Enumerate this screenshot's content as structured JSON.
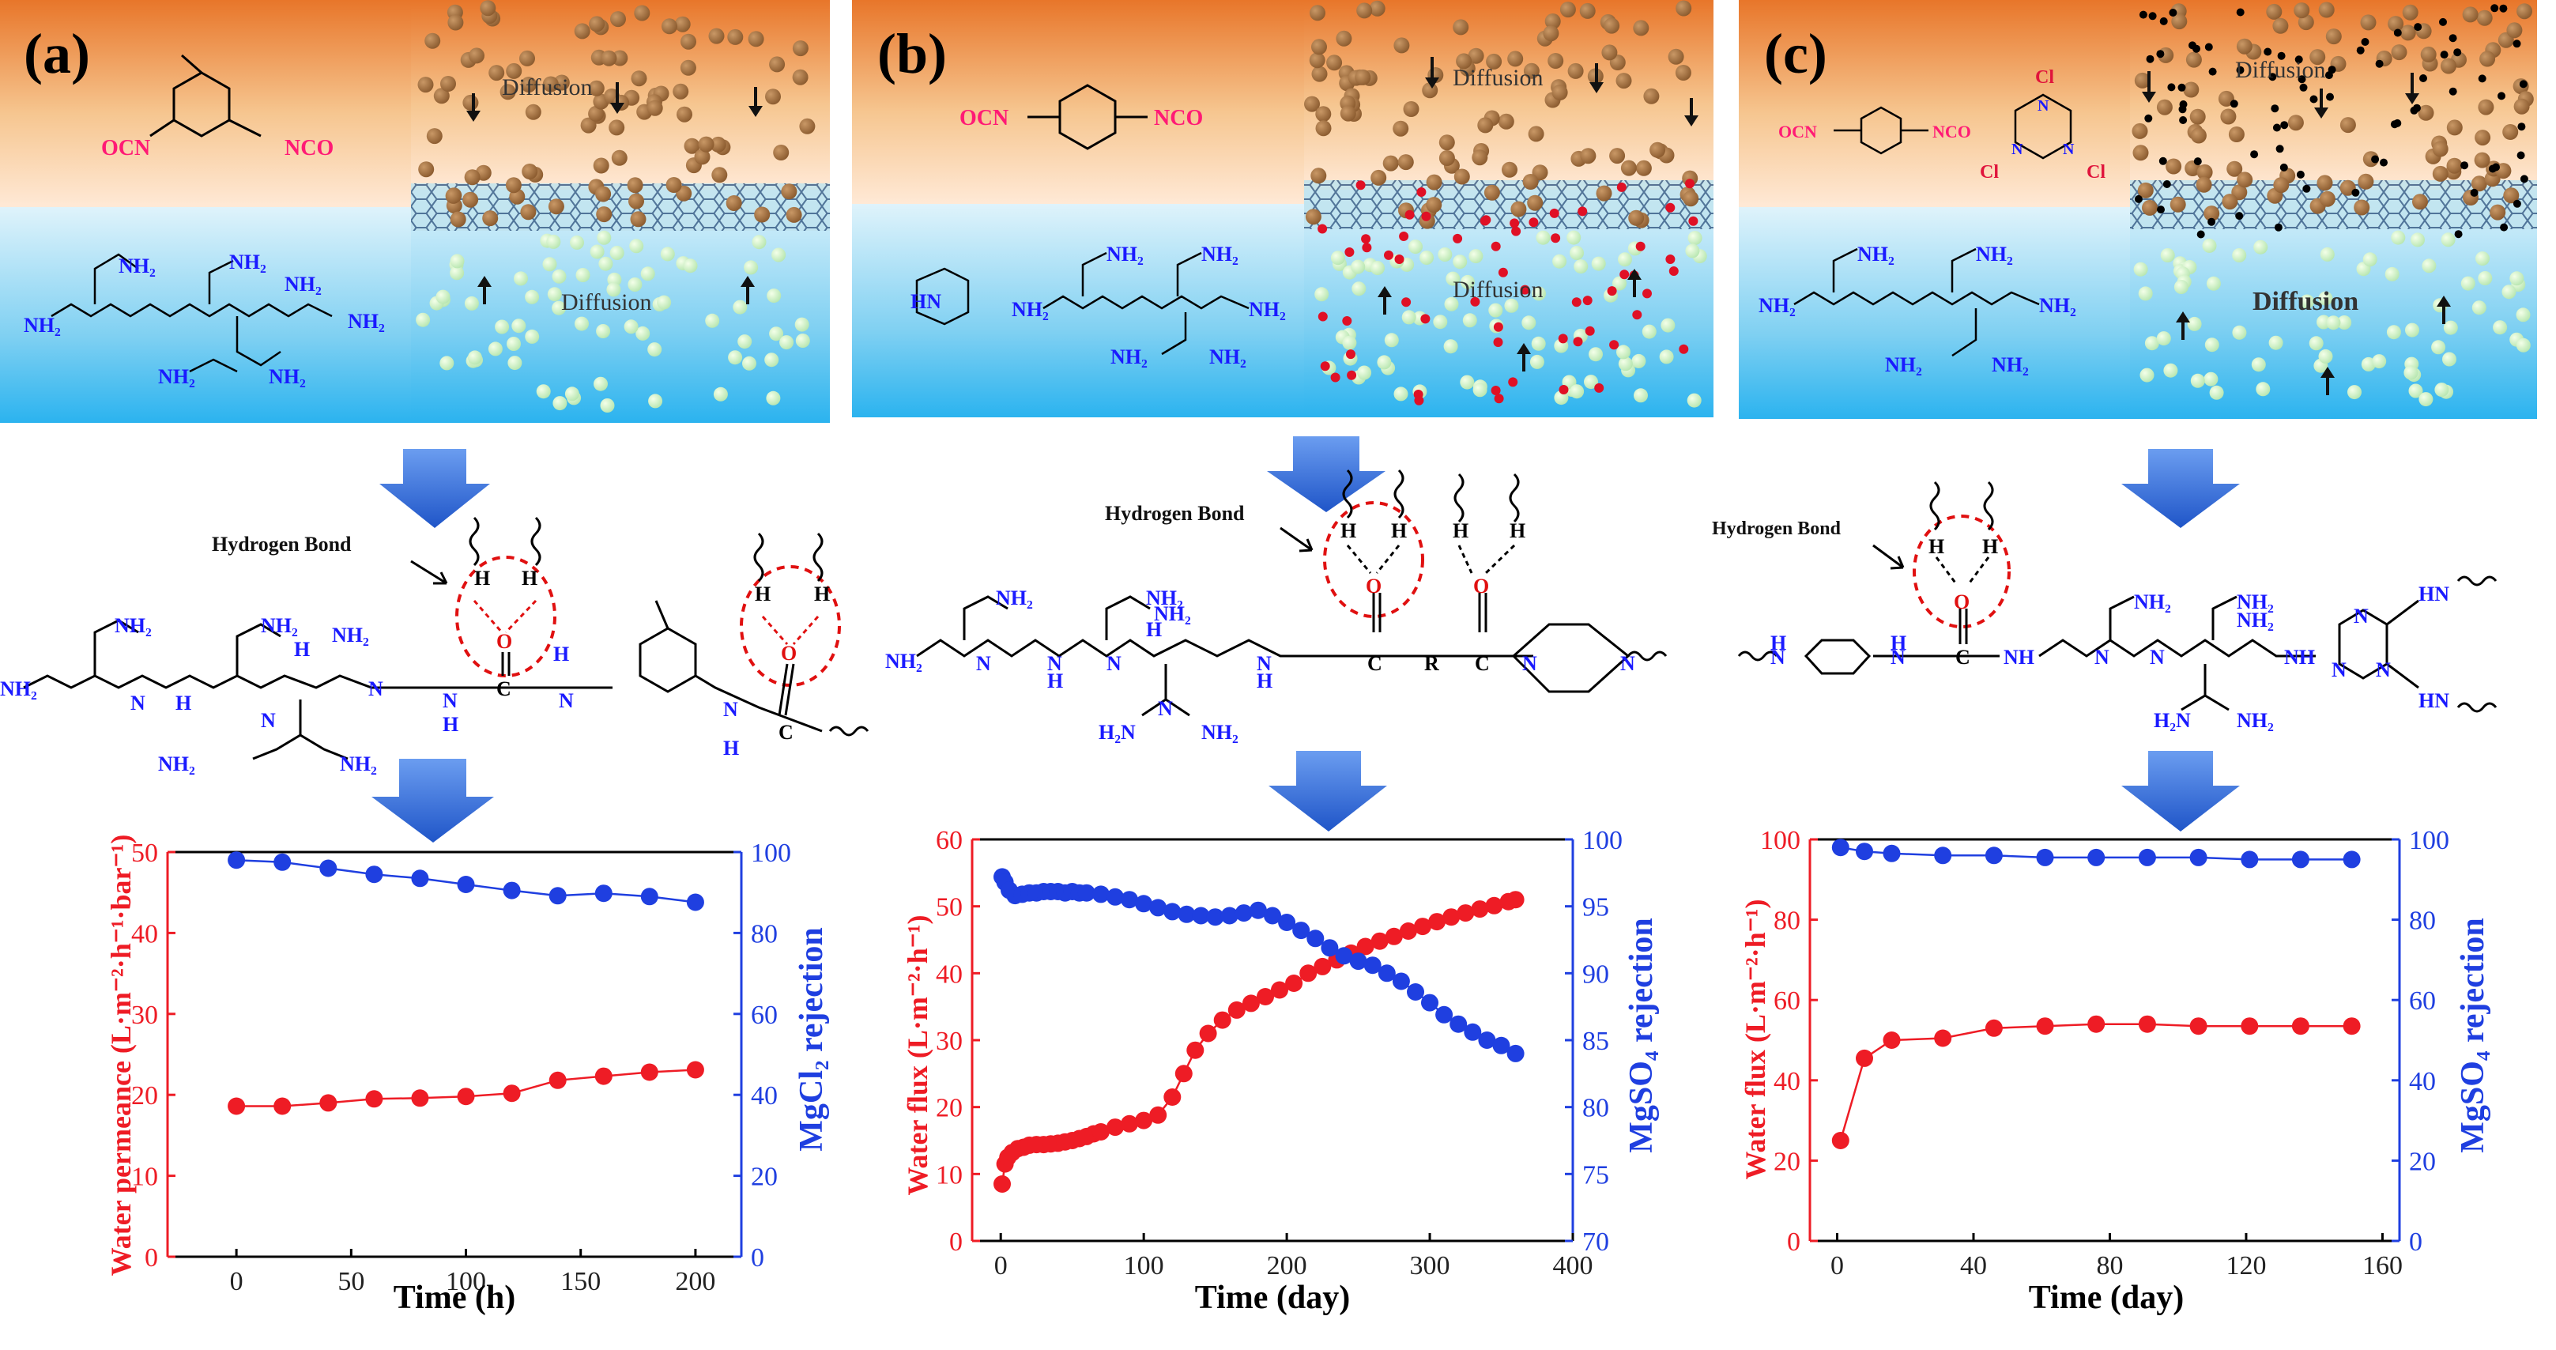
{
  "colors": {
    "red": "#ee1c25",
    "blue": "#1f3fe0",
    "tealBlue": "#4a7cff"
  },
  "panels": [
    {
      "label": "(a)",
      "monomer_labels": [
        "OCN",
        "NCO"
      ],
      "diffusion_top": "Diffusion",
      "diffusion_bottom": "Diffusion",
      "hydrogen_bond": "Hydrogen Bond"
    },
    {
      "label": "(b)",
      "monomer_labels": [
        "OCN",
        "NCO"
      ],
      "diffusion_top": "Diffusion",
      "diffusion_bottom": "Diffusion",
      "hydrogen_bond": "Hydrogen Bond"
    },
    {
      "label": "(c)",
      "monomer_labels": [
        "OCN",
        "NCO"
      ],
      "diffusion_top": "Diffusion",
      "diffusion_bottom": "Diffusion",
      "hydrogen_bond": "Hydrogen Bond"
    }
  ],
  "chart_data": [
    {
      "type": "line",
      "panel": "a",
      "xlabel": "Time (h)",
      "ylabel_left": "Water permeance (L·m⁻²·h⁻¹·bar⁻¹)",
      "ylabel_right": "MgCl₂ rejection",
      "xlim": [
        -30,
        220
      ],
      "xticks": [
        0,
        50,
        100,
        150,
        200
      ],
      "ylim_left": [
        0,
        50
      ],
      "yticks_left": [
        0,
        10,
        20,
        30,
        40,
        50
      ],
      "ylim_right": [
        0,
        100
      ],
      "yticks_right": [
        0,
        20,
        40,
        60,
        80,
        100
      ],
      "series": [
        {
          "name": "Water permeance",
          "axis": "left",
          "color": "#ee1c25",
          "x": [
            0,
            20,
            40,
            60,
            80,
            100,
            120,
            140,
            160,
            180,
            200
          ],
          "values": [
            18.6,
            18.6,
            19.0,
            19.5,
            19.6,
            19.8,
            20.2,
            21.8,
            22.3,
            22.8,
            23.1
          ]
        },
        {
          "name": "MgCl2 rejection",
          "axis": "right",
          "color": "#1f3fe0",
          "x": [
            0,
            20,
            40,
            60,
            80,
            100,
            120,
            140,
            160,
            180,
            200
          ],
          "values": [
            98,
            97.5,
            96,
            94.5,
            93.5,
            92,
            90.5,
            89.2,
            89.8,
            89,
            87.6
          ]
        }
      ]
    },
    {
      "type": "line",
      "panel": "b",
      "xlabel": "Time (day)",
      "ylabel_left": "Water flux (L·m⁻²·h⁻¹)",
      "ylabel_right": "MgSO₄ rejection",
      "xlim": [
        -20,
        400
      ],
      "xticks": [
        0,
        100,
        200,
        300,
        400
      ],
      "ylim_left": [
        0,
        60
      ],
      "yticks_left": [
        0,
        10,
        20,
        30,
        40,
        50,
        60
      ],
      "ylim_right": [
        70,
        100
      ],
      "yticks_right": [
        70,
        75,
        80,
        85,
        90,
        95,
        100
      ],
      "series": [
        {
          "name": "Water flux",
          "axis": "left",
          "color": "#ee1c25",
          "x": [
            1,
            3,
            5,
            8,
            12,
            16,
            20,
            25,
            30,
            35,
            40,
            45,
            50,
            55,
            60,
            65,
            70,
            80,
            90,
            100,
            110,
            120,
            128,
            136,
            145,
            155,
            165,
            175,
            185,
            195,
            205,
            215,
            225,
            235,
            245,
            255,
            265,
            275,
            285,
            295,
            305,
            315,
            325,
            335,
            345,
            355,
            360
          ],
          "values": [
            8.5,
            11.5,
            12.5,
            13.2,
            13.8,
            14.0,
            14.3,
            14.4,
            14.4,
            14.5,
            14.6,
            14.8,
            15.0,
            15.3,
            15.6,
            16.0,
            16.3,
            17.0,
            17.5,
            18.0,
            18.8,
            21.5,
            25.0,
            28.5,
            31.0,
            33.0,
            34.5,
            35.5,
            36.5,
            37.5,
            38.5,
            40.0,
            41.0,
            42.0,
            43.0,
            44.0,
            44.8,
            45.5,
            46.3,
            47.0,
            47.7,
            48.4,
            49.0,
            49.6,
            50.1,
            50.7,
            51.0
          ]
        },
        {
          "name": "MgSO4 rejection",
          "axis": "right",
          "color": "#1f3fe0",
          "x": [
            1,
            3,
            6,
            10,
            15,
            20,
            25,
            30,
            35,
            40,
            45,
            50,
            55,
            60,
            70,
            80,
            90,
            100,
            110,
            120,
            130,
            140,
            150,
            160,
            170,
            180,
            190,
            200,
            210,
            220,
            230,
            240,
            250,
            260,
            270,
            280,
            290,
            300,
            310,
            320,
            330,
            340,
            350,
            360
          ],
          "values": [
            97.2,
            96.8,
            96.2,
            95.8,
            95.9,
            96.0,
            96.0,
            96.1,
            96.1,
            96.1,
            96.0,
            96.1,
            96.0,
            96.0,
            95.9,
            95.7,
            95.5,
            95.2,
            94.9,
            94.6,
            94.4,
            94.3,
            94.2,
            94.3,
            94.5,
            94.7,
            94.3,
            93.8,
            93.2,
            92.6,
            91.9,
            91.3,
            90.9,
            90.6,
            90.0,
            89.4,
            88.6,
            87.8,
            86.9,
            86.2,
            85.6,
            85.0,
            84.6,
            84.0
          ]
        }
      ]
    },
    {
      "type": "line",
      "panel": "c",
      "xlabel": "Time (day)",
      "ylabel_left": "Water flux (L·m⁻²·h⁻¹)",
      "ylabel_right": "MgSO₄ rejection",
      "xlim": [
        -8,
        165
      ],
      "xticks": [
        0,
        40,
        80,
        120,
        160
      ],
      "ylim_left": [
        0,
        100
      ],
      "yticks_left": [
        0,
        20,
        40,
        60,
        80,
        100
      ],
      "ylim_right": [
        0,
        100
      ],
      "yticks_right": [
        0,
        20,
        40,
        60,
        80,
        100
      ],
      "series": [
        {
          "name": "Water flux",
          "axis": "left",
          "color": "#ee1c25",
          "x": [
            1,
            8,
            16,
            31,
            46,
            61,
            76,
            91,
            106,
            121,
            136,
            151
          ],
          "values": [
            25,
            45.5,
            50,
            50.5,
            53,
            53.5,
            54,
            54,
            53.5,
            53.5,
            53.5,
            53.5
          ]
        },
        {
          "name": "MgSO4 rejection",
          "axis": "right",
          "color": "#1f3fe0",
          "x": [
            1,
            8,
            16,
            31,
            46,
            61,
            76,
            91,
            106,
            121,
            136,
            151
          ],
          "values": [
            98,
            97,
            96.5,
            96,
            96,
            95.5,
            95.5,
            95.5,
            95.5,
            95,
            95,
            95
          ]
        }
      ]
    }
  ]
}
